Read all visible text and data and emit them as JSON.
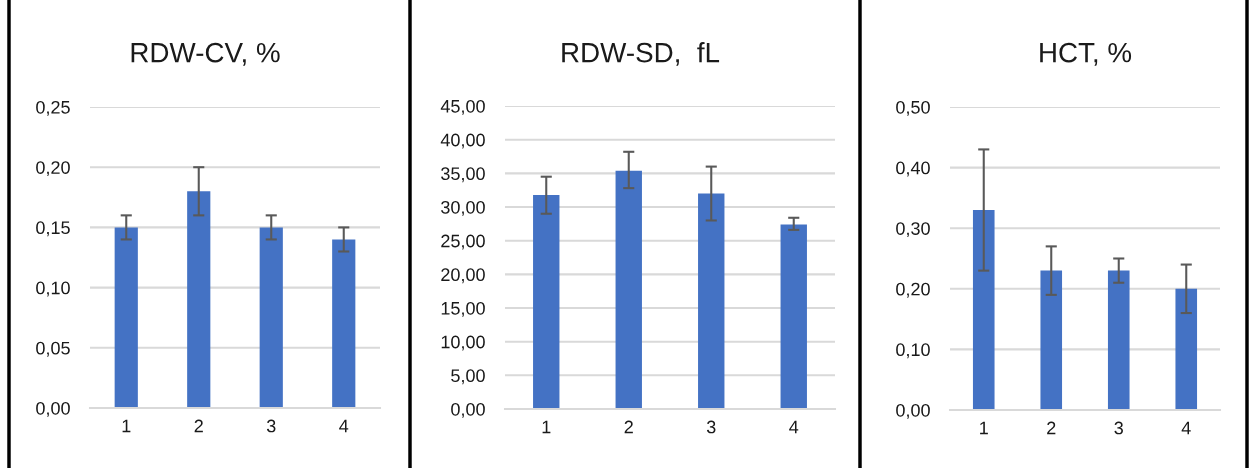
{
  "chart_data": [
    {
      "type": "bar",
      "title": "RDW-CV, %",
      "categories": [
        "1",
        "2",
        "3",
        "4"
      ],
      "values": [
        0.15,
        0.18,
        0.15,
        0.14
      ],
      "errors": [
        0.01,
        0.02,
        0.01,
        0.01
      ],
      "color": "#4472c4",
      "ylim": [
        0,
        0.25
      ],
      "yticks": [
        {
          "value": 0,
          "label": "0,00"
        },
        {
          "value": 0.05,
          "label": "0,05"
        },
        {
          "value": 0.1,
          "label": "0,10"
        },
        {
          "value": 0.15,
          "label": "0,15"
        },
        {
          "value": 0.2,
          "label": "0,20"
        },
        {
          "value": 0.25,
          "label": "0,25"
        }
      ],
      "grid": "y"
    },
    {
      "type": "bar",
      "title": "RDW-SD,  fL",
      "categories": [
        "1",
        "2",
        "3",
        "4"
      ],
      "values": [
        31.8,
        35.4,
        32.0,
        27.4
      ],
      "errors": [
        [
          29.0,
          34.5
        ],
        [
          32.8,
          38.2
        ],
        [
          28.0,
          36.0
        ],
        [
          26.6,
          28.4
        ]
      ],
      "color": "#4472c4",
      "ylim": [
        0,
        45
      ],
      "yticks": [
        {
          "value": 0,
          "label": "0,00"
        },
        {
          "value": 5,
          "label": "5,00"
        },
        {
          "value": 10,
          "label": "10,00"
        },
        {
          "value": 15,
          "label": "15,00"
        },
        {
          "value": 20,
          "label": "20,00"
        },
        {
          "value": 25,
          "label": "25,00"
        },
        {
          "value": 30,
          "label": "30,00"
        },
        {
          "value": 35,
          "label": "35,00"
        },
        {
          "value": 40,
          "label": "40,00"
        },
        {
          "value": 45,
          "label": "45,00"
        }
      ],
      "grid": "y"
    },
    {
      "type": "bar",
      "title": "HCT, %",
      "categories": [
        "1",
        "2",
        "3",
        "4"
      ],
      "values": [
        0.33,
        0.23,
        0.23,
        0.2
      ],
      "errors": [
        0.1,
        0.04,
        0.02,
        0.04
      ],
      "color": "#4472c4",
      "ylim": [
        0,
        0.5
      ],
      "yticks": [
        {
          "value": 0,
          "label": "0,00"
        },
        {
          "value": 0.1,
          "label": "0,10"
        },
        {
          "value": 0.2,
          "label": "0,20"
        },
        {
          "value": 0.3,
          "label": "0,30"
        },
        {
          "value": 0.4,
          "label": "0,40"
        },
        {
          "value": 0.5,
          "label": "0,50"
        }
      ],
      "grid": "y"
    }
  ]
}
